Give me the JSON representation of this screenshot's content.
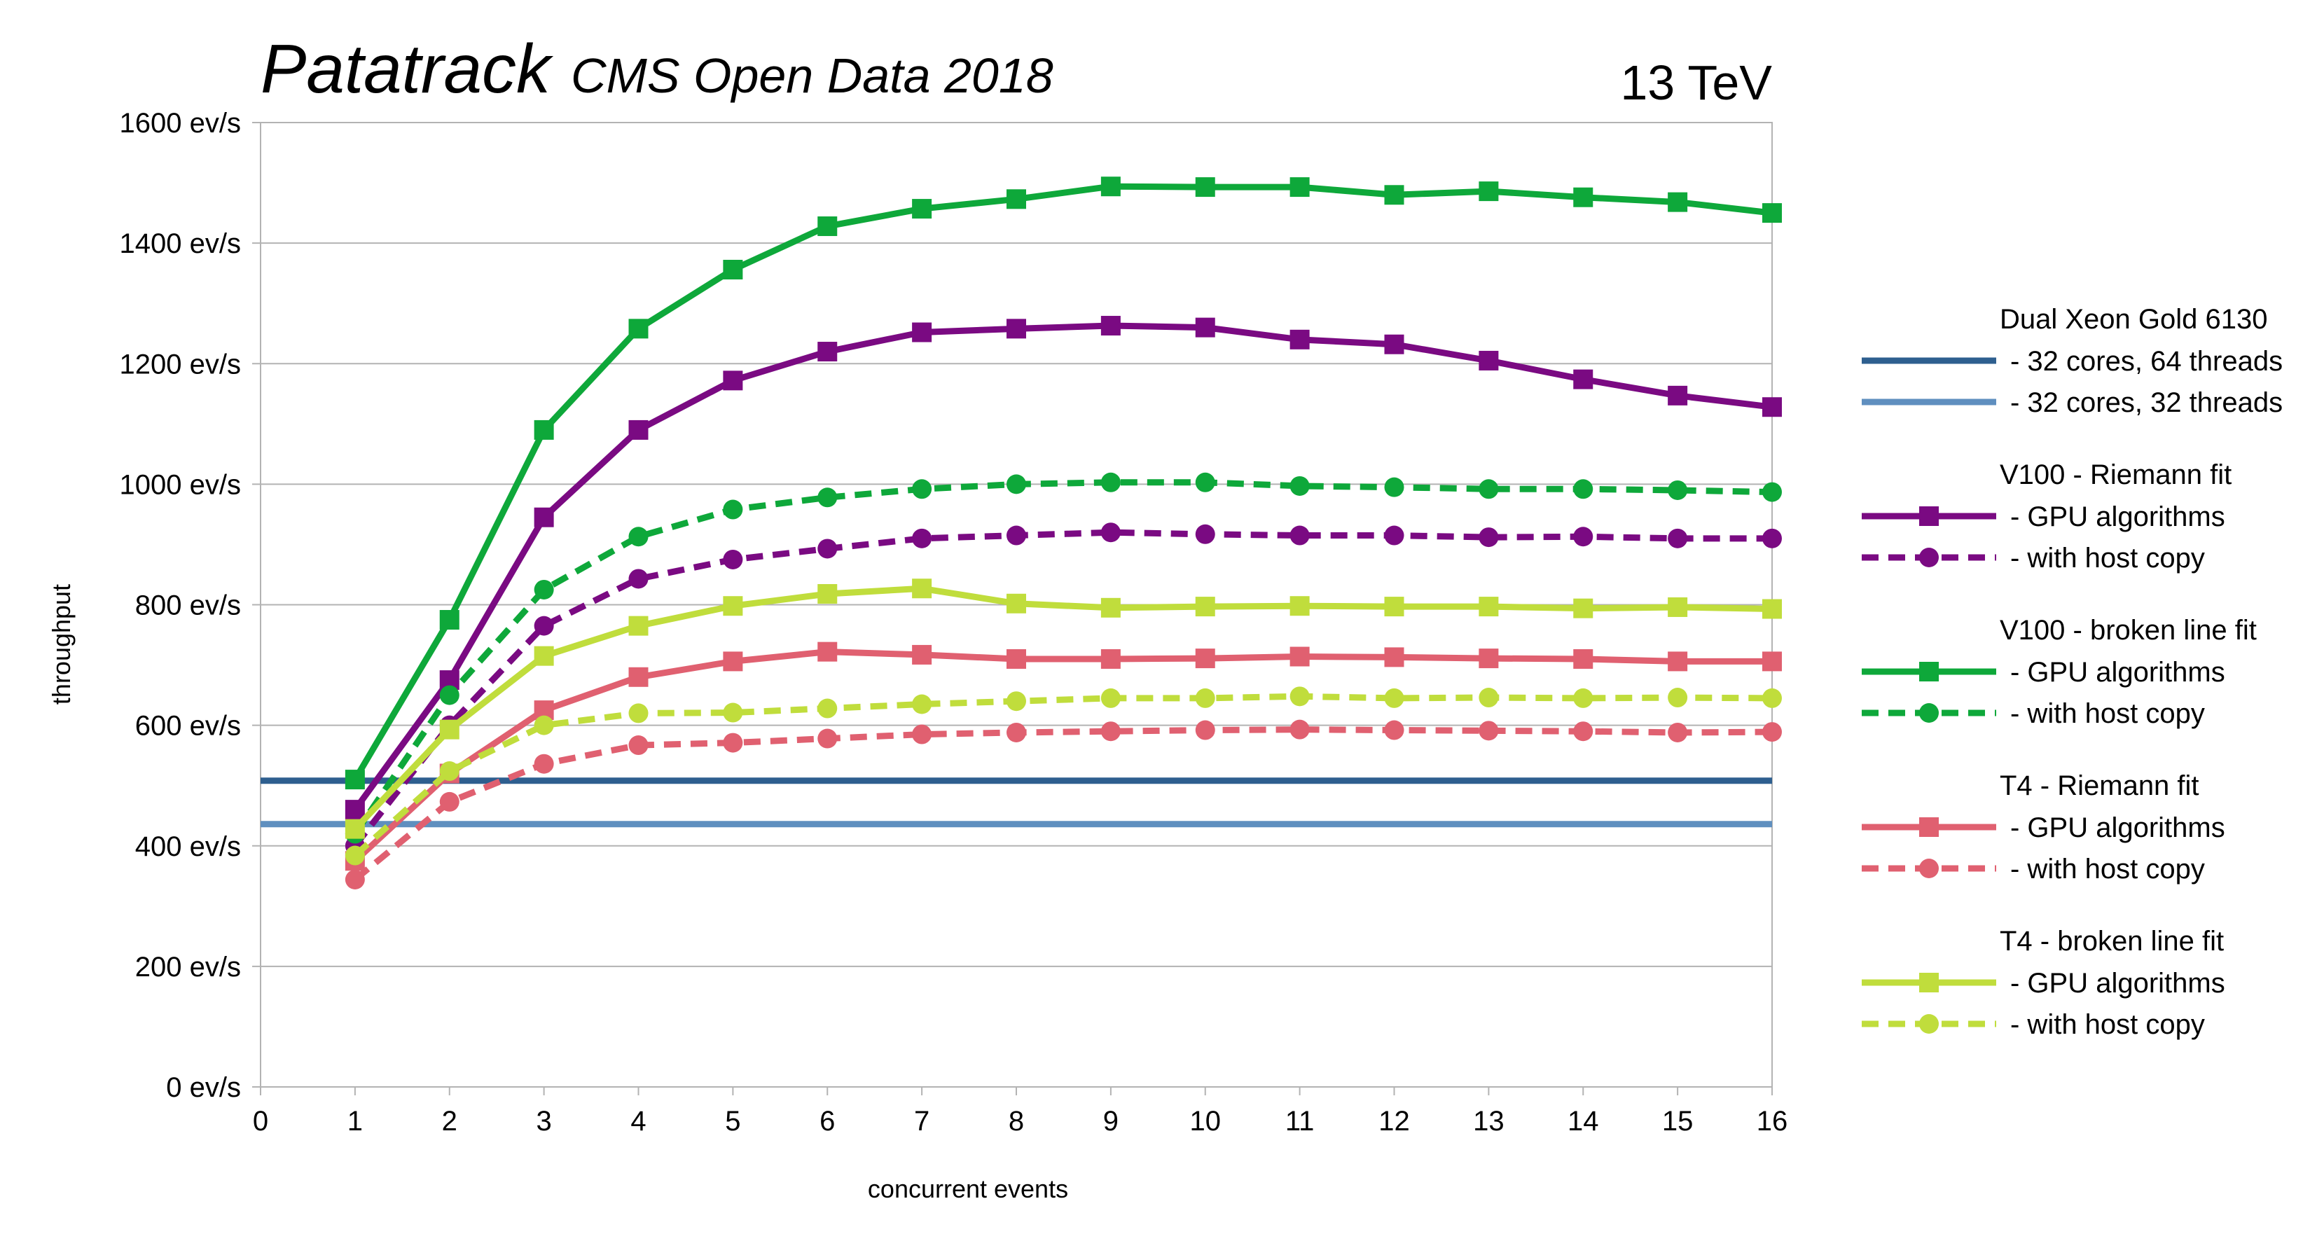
{
  "header": {
    "title_main": "Patatrack",
    "title_sub": "CMS Open Data 2018",
    "energy": "13 TeV"
  },
  "chart_data": {
    "type": "line",
    "xlabel": "concurrent events",
    "ylabel": "throughput",
    "xlim": [
      0,
      16
    ],
    "ylim": [
      0,
      1600
    ],
    "x_ticks": [
      0,
      1,
      2,
      3,
      4,
      5,
      6,
      7,
      8,
      9,
      10,
      11,
      12,
      13,
      14,
      15,
      16
    ],
    "y_ticks": [
      0,
      200,
      400,
      600,
      800,
      1000,
      1200,
      1400,
      1600
    ],
    "y_tick_labels": [
      "0 ev/s",
      "200 ev/s",
      "400 ev/s",
      "600 ev/s",
      "800 ev/s",
      "1000 ev/s",
      "1200 ev/s",
      "1400 ev/s",
      "1600 ev/s"
    ],
    "grid": "horizontal",
    "legend_position": "right",
    "x": [
      1,
      2,
      3,
      4,
      5,
      6,
      7,
      8,
      9,
      10,
      11,
      12,
      13,
      14,
      15,
      16
    ],
    "reference_lines": [
      {
        "legend_group": "Dual Xeon Gold 6130",
        "name": "- 32 cores, 64 threads",
        "value": 508,
        "color": "#2e5f8f"
      },
      {
        "legend_group": "Dual Xeon Gold 6130",
        "name": "- 32 cores, 32 threads",
        "value": 436,
        "color": "#5f8fbf"
      }
    ],
    "series": [
      {
        "legend_group": "V100 - Riemann fit",
        "name": "- GPU algorithms",
        "color": "#7a0a82",
        "style": "solid",
        "marker": "square",
        "values": [
          460,
          675,
          945,
          1090,
          1172,
          1220,
          1252,
          1258,
          1263,
          1260,
          1240,
          1232,
          1205,
          1174,
          1147,
          1128
        ]
      },
      {
        "legend_group": "V100 - Riemann fit",
        "name": "- with host copy",
        "color": "#7a0a82",
        "style": "dashed",
        "marker": "circle",
        "values": [
          400,
          600,
          765,
          843,
          875,
          893,
          910,
          915,
          920,
          917,
          915,
          915,
          912,
          913,
          910,
          910
        ]
      },
      {
        "legend_group": "V100 - broken line fit",
        "name": "- GPU algorithms",
        "color": "#0ea83a",
        "style": "solid",
        "marker": "square",
        "values": [
          510,
          775,
          1090,
          1258,
          1356,
          1428,
          1457,
          1473,
          1494,
          1493,
          1493,
          1480,
          1486,
          1476,
          1468,
          1450
        ]
      },
      {
        "legend_group": "V100 - broken line fit",
        "name": "- with host copy",
        "color": "#0ea83a",
        "style": "dashed",
        "marker": "circle",
        "values": [
          420,
          650,
          825,
          913,
          958,
          978,
          992,
          1000,
          1003,
          1003,
          997,
          995,
          992,
          992,
          990,
          987
        ]
      },
      {
        "legend_group": "T4 - Riemann fit",
        "name": "- GPU algorithms",
        "color": "#e06070",
        "style": "solid",
        "marker": "square",
        "values": [
          375,
          520,
          625,
          680,
          706,
          722,
          717,
          710,
          710,
          711,
          714,
          713,
          711,
          710,
          706,
          706
        ]
      },
      {
        "legend_group": "T4 - Riemann fit",
        "name": "- with host copy",
        "color": "#e06070",
        "style": "dashed",
        "marker": "circle",
        "values": [
          344,
          473,
          536,
          567,
          571,
          578,
          585,
          588,
          590,
          592,
          593,
          592,
          591,
          590,
          588,
          589
        ]
      },
      {
        "legend_group": "T4 - broken line fit",
        "name": "- GPU algorithms",
        "color": "#c0dd3c",
        "style": "solid",
        "marker": "square",
        "values": [
          428,
          593,
          715,
          765,
          798,
          818,
          827,
          802,
          795,
          797,
          798,
          797,
          797,
          794,
          796,
          793
        ]
      },
      {
        "legend_group": "T4 - broken line fit",
        "name": "- with host copy",
        "color": "#c0dd3c",
        "style": "dashed",
        "marker": "circle",
        "values": [
          384,
          524,
          600,
          620,
          621,
          628,
          635,
          640,
          645,
          645,
          648,
          645,
          646,
          645,
          646,
          645
        ]
      }
    ]
  }
}
